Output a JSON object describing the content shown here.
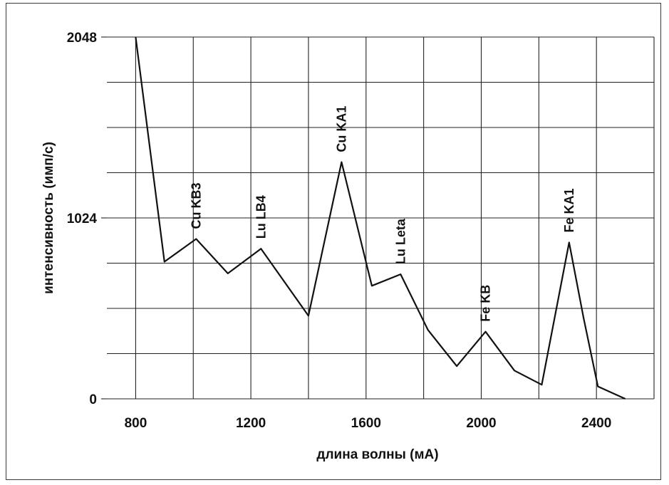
{
  "chart_data": {
    "type": "line",
    "title": "",
    "xlabel": "длина волны (мА)",
    "ylabel": "интенсивность (имп/с)",
    "xlim": [
      700,
      2600
    ],
    "ylim": [
      0,
      2048
    ],
    "xticks": [
      800,
      1200,
      1600,
      2000,
      2400
    ],
    "yticks": [
      0,
      1024,
      2048
    ],
    "x_tick_labels": [
      "800",
      "1200",
      "1600",
      "2000",
      "2400"
    ],
    "y_tick_labels": [
      "0",
      "1024",
      "2048"
    ],
    "grid": true,
    "series": [
      {
        "points": [
          [
            800,
            2048
          ],
          [
            900,
            776
          ],
          [
            1010,
            905
          ],
          [
            1120,
            710
          ],
          [
            1235,
            850
          ],
          [
            1400,
            470
          ],
          [
            1515,
            1340
          ],
          [
            1620,
            640
          ],
          [
            1720,
            705
          ],
          [
            1815,
            390
          ],
          [
            1915,
            185
          ],
          [
            2015,
            380
          ],
          [
            2115,
            160
          ],
          [
            2210,
            80
          ],
          [
            2305,
            885
          ],
          [
            2355,
            460
          ],
          [
            2405,
            70
          ],
          [
            2500,
            0
          ]
        ]
      }
    ],
    "annotations": [
      {
        "text": "Cu KB3",
        "x": 1010,
        "y": 905
      },
      {
        "text": "Lu LB4",
        "x": 1235,
        "y": 850
      },
      {
        "text": "Cu KA1",
        "x": 1515,
        "y": 1340
      },
      {
        "text": "Lu Leta",
        "x": 1720,
        "y": 705
      },
      {
        "text": "Fe KB",
        "x": 2015,
        "y": 380
      },
      {
        "text": "Fe KA1",
        "x": 2305,
        "y": 885
      }
    ]
  }
}
